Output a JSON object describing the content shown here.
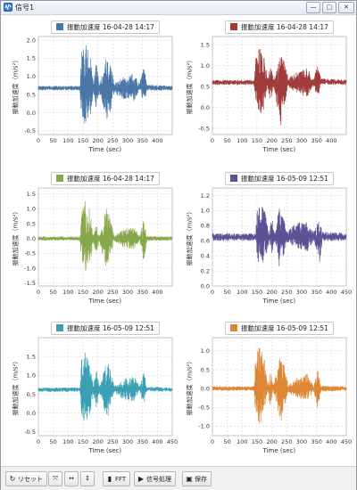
{
  "window": {
    "title": "信号1",
    "minimize": "—",
    "maximize": "▢",
    "close": "✕"
  },
  "toolbar": {
    "reset_label": "リセット",
    "fit_all_icon": "fit-all-icon",
    "zoom_x_icon": "zoom-x-icon",
    "zoom_y_icon": "zoom-y-icon",
    "fft_label": "FFT",
    "signal_label": "信号処理",
    "save_label": "保存"
  },
  "colors": [
    "#4a77a8",
    "#a23b3b",
    "#86a84a",
    "#5e5196",
    "#3aa0b4",
    "#dd8633"
  ],
  "chart_data": [
    {
      "type": "line",
      "title": "",
      "legend": "振動加速度 16-04-28 14:17",
      "color": "#4a77a8",
      "xlabel": "Time (sec)",
      "ylabel": "振動加速度（m/s²）",
      "xlim": [
        0,
        450
      ],
      "xticks": [
        0,
        50,
        100,
        150,
        200,
        250,
        300,
        350,
        400
      ],
      "ylim": [
        -0.6,
        2.1
      ],
      "yticks": [
        -0.5,
        0,
        0.5,
        1,
        1.5,
        2
      ],
      "ytick_labels": [
        "-0.5",
        "0.0",
        "0.5",
        "1.0",
        "1.5",
        "2.0"
      ],
      "baseline": 0.68,
      "envelope": [
        {
          "x": 0,
          "hi": 0.74,
          "lo": 0.62
        },
        {
          "x": 140,
          "hi": 0.74,
          "lo": 0.62
        },
        {
          "x": 145,
          "hi": 1.75,
          "lo": -0.3
        },
        {
          "x": 160,
          "hi": 1.9,
          "lo": -0.4
        },
        {
          "x": 175,
          "hi": 1.6,
          "lo": -0.2
        },
        {
          "x": 185,
          "hi": 0.8,
          "lo": 0.55
        },
        {
          "x": 195,
          "hi": 1.4,
          "lo": 0.1
        },
        {
          "x": 205,
          "hi": 0.8,
          "lo": 0.55
        },
        {
          "x": 230,
          "hi": 1.6,
          "lo": -0.2
        },
        {
          "x": 245,
          "hi": 1.3,
          "lo": 0.1
        },
        {
          "x": 255,
          "hi": 0.8,
          "lo": 0.55
        },
        {
          "x": 285,
          "hi": 1.0,
          "lo": 0.35
        },
        {
          "x": 300,
          "hi": 1.0,
          "lo": 0.4
        },
        {
          "x": 320,
          "hi": 1.1,
          "lo": 0.3
        },
        {
          "x": 340,
          "hi": 0.8,
          "lo": 0.6
        },
        {
          "x": 355,
          "hi": 1.3,
          "lo": 0.2
        },
        {
          "x": 365,
          "hi": 0.78,
          "lo": 0.6
        },
        {
          "x": 450,
          "hi": 0.74,
          "lo": 0.62
        }
      ],
      "grid": true,
      "legend_position": "top-center"
    },
    {
      "type": "line",
      "title": "",
      "legend": "振動加速度 16-04-28 14:17",
      "color": "#a23b3b",
      "xlabel": "Time (sec)",
      "ylabel": "振動加速度（m/s²）",
      "xlim": [
        0,
        450
      ],
      "xticks": [
        0,
        50,
        100,
        150,
        200,
        250,
        300,
        350,
        400
      ],
      "ylim": [
        -0.65,
        1.7
      ],
      "yticks": [
        -0.5,
        0,
        0.5,
        1,
        1.5
      ],
      "ytick_labels": [
        "-0.5",
        "0.0",
        "0.5",
        "1.0",
        "1.5"
      ],
      "baseline": 0.6,
      "envelope": [
        {
          "x": 0,
          "hi": 0.66,
          "lo": 0.54
        },
        {
          "x": 140,
          "hi": 0.66,
          "lo": 0.54
        },
        {
          "x": 145,
          "hi": 1.2,
          "lo": 0.0
        },
        {
          "x": 160,
          "hi": 1.45,
          "lo": -0.25
        },
        {
          "x": 175,
          "hi": 1.2,
          "lo": 0.0
        },
        {
          "x": 185,
          "hi": 0.7,
          "lo": 0.5
        },
        {
          "x": 195,
          "hi": 1.1,
          "lo": 0.1
        },
        {
          "x": 205,
          "hi": 0.7,
          "lo": 0.5
        },
        {
          "x": 230,
          "hi": 1.3,
          "lo": -0.45
        },
        {
          "x": 245,
          "hi": 1.1,
          "lo": 0.1
        },
        {
          "x": 255,
          "hi": 0.7,
          "lo": 0.5
        },
        {
          "x": 285,
          "hi": 0.9,
          "lo": 0.3
        },
        {
          "x": 320,
          "hi": 0.95,
          "lo": 0.25
        },
        {
          "x": 340,
          "hi": 0.7,
          "lo": 0.5
        },
        {
          "x": 355,
          "hi": 1.05,
          "lo": 0.2
        },
        {
          "x": 365,
          "hi": 0.7,
          "lo": 0.55
        },
        {
          "x": 450,
          "hi": 0.66,
          "lo": 0.54
        }
      ],
      "grid": true,
      "legend_position": "top-center"
    },
    {
      "type": "line",
      "title": "",
      "legend": "振動加速度 16-04-28 14:17",
      "color": "#86a84a",
      "xlabel": "Time (sec)",
      "ylabel": "振動加速度（m/s²）",
      "xlim": [
        0,
        450
      ],
      "xticks": [
        0,
        50,
        100,
        150,
        200,
        250,
        300,
        350,
        400
      ],
      "ylim": [
        -1.6,
        1.7
      ],
      "yticks": [
        -1.5,
        -1,
        -0.5,
        0,
        0.5,
        1,
        1.5
      ],
      "ytick_labels": [
        "-1.5",
        "-1.0",
        "-0.5",
        "0.0",
        "0.5",
        "1.0",
        "1.5"
      ],
      "baseline": 0.0,
      "envelope": [
        {
          "x": 0,
          "hi": 0.07,
          "lo": -0.07
        },
        {
          "x": 140,
          "hi": 0.07,
          "lo": -0.07
        },
        {
          "x": 145,
          "hi": 1.1,
          "lo": -1.0
        },
        {
          "x": 160,
          "hi": 1.3,
          "lo": -1.4
        },
        {
          "x": 175,
          "hi": 0.9,
          "lo": -0.8
        },
        {
          "x": 185,
          "hi": 0.1,
          "lo": -0.1
        },
        {
          "x": 195,
          "hi": 0.6,
          "lo": -0.6
        },
        {
          "x": 205,
          "hi": 0.1,
          "lo": -0.1
        },
        {
          "x": 230,
          "hi": 1.1,
          "lo": -1.1
        },
        {
          "x": 245,
          "hi": 0.5,
          "lo": -0.5
        },
        {
          "x": 255,
          "hi": 0.1,
          "lo": -0.1
        },
        {
          "x": 285,
          "hi": 0.3,
          "lo": -0.3
        },
        {
          "x": 320,
          "hi": 0.4,
          "lo": -0.4
        },
        {
          "x": 340,
          "hi": 0.08,
          "lo": -0.08
        },
        {
          "x": 355,
          "hi": 0.7,
          "lo": -0.8
        },
        {
          "x": 365,
          "hi": 0.08,
          "lo": -0.08
        },
        {
          "x": 450,
          "hi": 0.07,
          "lo": -0.07
        }
      ],
      "grid": true,
      "legend_position": "top-center"
    },
    {
      "type": "line",
      "title": "",
      "legend": "振動加速度 16-05-09 12:51",
      "color": "#5e5196",
      "xlabel": "Time (sec)",
      "ylabel": "振動加速度（m/s²）",
      "xlim": [
        0,
        450
      ],
      "xticks": [
        0,
        50,
        100,
        150,
        200,
        250,
        300,
        350,
        400,
        450
      ],
      "ylim": [
        0,
        1.3
      ],
      "yticks": [
        0,
        0.2,
        0.4,
        0.6,
        0.8,
        1.0,
        1.2
      ],
      "ytick_labels": [
        "0.0",
        "0.2",
        "0.4",
        "0.6",
        "0.8",
        "1.0",
        "1.2"
      ],
      "baseline": 0.65,
      "envelope": [
        {
          "x": 0,
          "hi": 0.7,
          "lo": 0.6
        },
        {
          "x": 145,
          "hi": 0.7,
          "lo": 0.6
        },
        {
          "x": 150,
          "hi": 1.0,
          "lo": 0.3
        },
        {
          "x": 165,
          "hi": 1.1,
          "lo": 0.25
        },
        {
          "x": 180,
          "hi": 0.95,
          "lo": 0.35
        },
        {
          "x": 190,
          "hi": 0.72,
          "lo": 0.58
        },
        {
          "x": 200,
          "hi": 0.9,
          "lo": 0.4
        },
        {
          "x": 210,
          "hi": 0.72,
          "lo": 0.58
        },
        {
          "x": 225,
          "hi": 1.05,
          "lo": 0.25
        },
        {
          "x": 240,
          "hi": 0.9,
          "lo": 0.4
        },
        {
          "x": 250,
          "hi": 0.72,
          "lo": 0.58
        },
        {
          "x": 285,
          "hi": 0.85,
          "lo": 0.5
        },
        {
          "x": 320,
          "hi": 0.85,
          "lo": 0.45
        },
        {
          "x": 340,
          "hi": 0.72,
          "lo": 0.6
        },
        {
          "x": 360,
          "hi": 0.9,
          "lo": 0.3
        },
        {
          "x": 370,
          "hi": 0.72,
          "lo": 0.6
        },
        {
          "x": 450,
          "hi": 0.7,
          "lo": 0.6
        }
      ],
      "grid": true,
      "legend_position": "top-center"
    },
    {
      "type": "line",
      "title": "",
      "legend": "振動加速度 16-05-09 12:51",
      "color": "#3aa0b4",
      "xlabel": "Time (sec)",
      "ylabel": "振動加速度（m/s²）",
      "xlim": [
        0,
        450
      ],
      "xticks": [
        0,
        50,
        100,
        150,
        200,
        250,
        300,
        350,
        400,
        450
      ],
      "ylim": [
        -0.6,
        2.0
      ],
      "yticks": [
        -0.5,
        0,
        0.5,
        1,
        1.5
      ],
      "ytick_labels": [
        "-0.5",
        "0.0",
        "0.5",
        "1.0",
        "1.5"
      ],
      "baseline": 0.62,
      "envelope": [
        {
          "x": 0,
          "hi": 0.68,
          "lo": 0.56
        },
        {
          "x": 140,
          "hi": 0.68,
          "lo": 0.56
        },
        {
          "x": 145,
          "hi": 1.5,
          "lo": -0.1
        },
        {
          "x": 160,
          "hi": 1.65,
          "lo": -0.3
        },
        {
          "x": 175,
          "hi": 1.3,
          "lo": 0.0
        },
        {
          "x": 185,
          "hi": 0.72,
          "lo": 0.52
        },
        {
          "x": 195,
          "hi": 1.2,
          "lo": 0.1
        },
        {
          "x": 205,
          "hi": 0.72,
          "lo": 0.52
        },
        {
          "x": 230,
          "hi": 1.4,
          "lo": -0.2
        },
        {
          "x": 245,
          "hi": 1.1,
          "lo": 0.2
        },
        {
          "x": 255,
          "hi": 0.72,
          "lo": 0.55
        },
        {
          "x": 285,
          "hi": 0.9,
          "lo": 0.35
        },
        {
          "x": 320,
          "hi": 1.0,
          "lo": 0.3
        },
        {
          "x": 340,
          "hi": 0.7,
          "lo": 0.58
        },
        {
          "x": 355,
          "hi": 1.1,
          "lo": 0.2
        },
        {
          "x": 365,
          "hi": 0.7,
          "lo": 0.58
        },
        {
          "x": 450,
          "hi": 0.68,
          "lo": 0.56
        }
      ],
      "grid": true,
      "legend_position": "top-center"
    },
    {
      "type": "line",
      "title": "",
      "legend": "振動加速度 16-05-09 12:51",
      "color": "#dd8633",
      "xlabel": "Time (sec)",
      "ylabel": "振動加速度（m/s²）",
      "xlim": [
        0,
        450
      ],
      "xticks": [
        0,
        50,
        100,
        150,
        200,
        250,
        300,
        350,
        400,
        450
      ],
      "ylim": [
        -1.25,
        1.35
      ],
      "yticks": [
        -1.0,
        -0.5,
        0,
        0.5,
        1.0
      ],
      "ytick_labels": [
        "-1.0",
        "-0.5",
        "0.0",
        "0.5",
        "1.0"
      ],
      "baseline": 0.0,
      "envelope": [
        {
          "x": 0,
          "hi": 0.06,
          "lo": -0.06
        },
        {
          "x": 140,
          "hi": 0.06,
          "lo": -0.06
        },
        {
          "x": 145,
          "hi": 0.9,
          "lo": -0.7
        },
        {
          "x": 160,
          "hi": 1.15,
          "lo": -1.0
        },
        {
          "x": 175,
          "hi": 0.8,
          "lo": -0.6
        },
        {
          "x": 185,
          "hi": 0.1,
          "lo": -0.1
        },
        {
          "x": 195,
          "hi": 0.5,
          "lo": -0.5
        },
        {
          "x": 205,
          "hi": 0.1,
          "lo": -0.1
        },
        {
          "x": 230,
          "hi": 0.9,
          "lo": -0.9
        },
        {
          "x": 245,
          "hi": 0.5,
          "lo": -0.4
        },
        {
          "x": 255,
          "hi": 0.1,
          "lo": -0.1
        },
        {
          "x": 285,
          "hi": 0.3,
          "lo": -0.25
        },
        {
          "x": 320,
          "hi": 0.4,
          "lo": -0.35
        },
        {
          "x": 340,
          "hi": 0.08,
          "lo": -0.08
        },
        {
          "x": 355,
          "hi": 0.55,
          "lo": -0.6
        },
        {
          "x": 365,
          "hi": 0.08,
          "lo": -0.08
        },
        {
          "x": 450,
          "hi": 0.06,
          "lo": -0.06
        }
      ],
      "grid": true,
      "legend_position": "top-center"
    }
  ]
}
